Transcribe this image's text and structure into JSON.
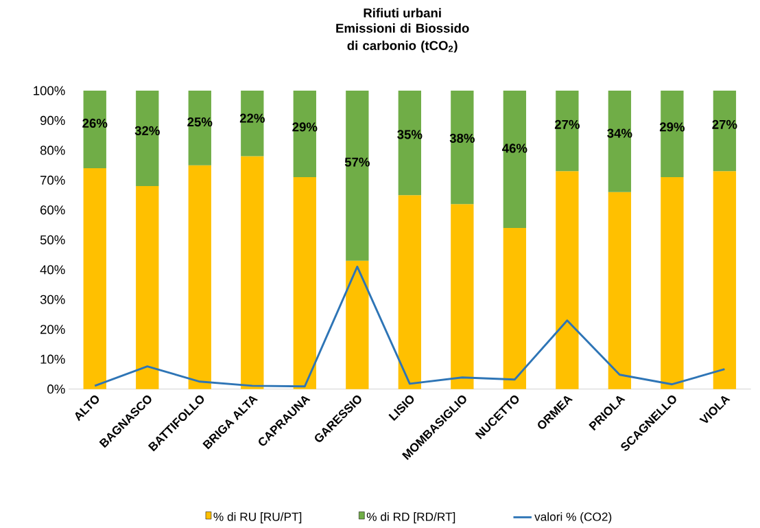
{
  "chart_data": {
    "type": "bar",
    "title": "Rifiuti urbani",
    "subtitle": "Emissioni di Biossido di carbonio (tCO$_{2}$)",
    "categories": [
      "ALTO",
      "BAGNASCO",
      "BATTIFOLLO",
      "BRIGA ALTA",
      "CAPRAUNA",
      "GARESSIO",
      "LISIO",
      "MOMBASIGLIO",
      "NUCETTO",
      "ORMEA",
      "PRIOLA",
      "SCAGNELLO",
      "VIOLA"
    ],
    "stacked": true,
    "series": [
      {
        "name": "% di RU  [RU/PT]",
        "color": "#ffc000",
        "values": [
          74,
          68,
          75,
          78,
          71,
          43,
          65,
          62,
          54,
          73,
          66,
          71,
          73
        ]
      },
      {
        "name": "% di RD [RD/RT]",
        "color": "#70ad47",
        "values": [
          26,
          32,
          25,
          22,
          29,
          57,
          35,
          38,
          46,
          27,
          34,
          29,
          27
        ],
        "value_labels": [
          "26%",
          "32%",
          "25%",
          "22%",
          "29%",
          "57%",
          "35%",
          "38%",
          "46%",
          "27%",
          "34%",
          "29%",
          "27%"
        ]
      },
      {
        "name": "valori % (CO2)",
        "type": "line",
        "color": "#2e75b6",
        "marker": "none",
        "values": [
          1.1,
          7.6,
          2.5,
          1.1,
          0.9,
          41,
          1.8,
          3.9,
          3.2,
          23,
          4.8,
          1.6,
          6.7
        ]
      }
    ],
    "ylim": [
      0,
      100
    ],
    "yticks": [
      {
        "value": 0,
        "label": "0%"
      },
      {
        "value": 10,
        "label": "10%"
      },
      {
        "value": 20,
        "label": "20%"
      },
      {
        "value": 30,
        "label": "30%"
      },
      {
        "value": 40,
        "label": "40%"
      },
      {
        "value": 50,
        "label": "50%"
      },
      {
        "value": 60,
        "label": "60%"
      },
      {
        "value": 70,
        "label": "70%"
      },
      {
        "value": 80,
        "label": "80%"
      },
      {
        "value": 90,
        "label": "90%"
      },
      {
        "value": 100,
        "label": "100%"
      }
    ],
    "grid": false,
    "legend": "bottom"
  }
}
